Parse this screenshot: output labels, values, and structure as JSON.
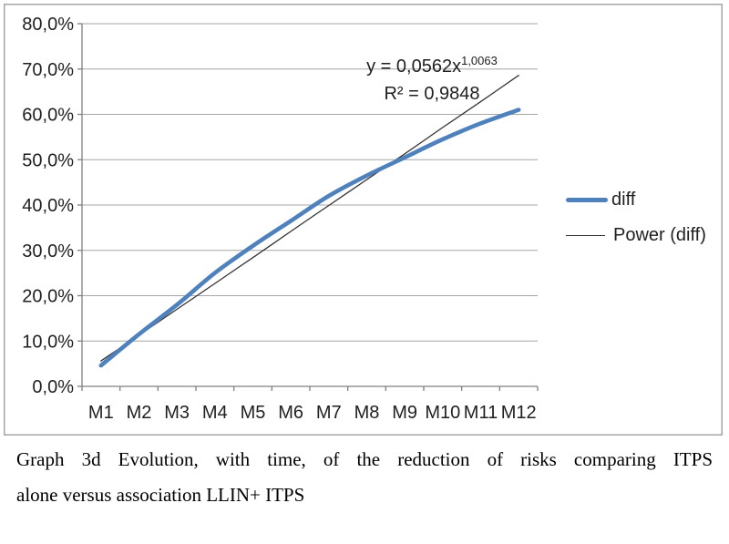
{
  "figure": {
    "caption_line1": "Graph 3d Evolution, with time, of the reduction of risks comparing ITPS",
    "caption_line2": "alone versus association LLIN+ ITPS"
  },
  "chart_data": {
    "type": "line",
    "title": "",
    "xlabel": "",
    "ylabel": "",
    "categories": [
      "M1",
      "M2",
      "M3",
      "M4",
      "M5",
      "M6",
      "M7",
      "M8",
      "M9",
      "M10",
      "M11",
      "M12"
    ],
    "series": [
      {
        "name": "diff",
        "values": [
          4.6,
          11.5,
          18.0,
          25.0,
          31.0,
          36.5,
          42.0,
          46.5,
          50.5,
          54.5,
          58.0,
          61.0
        ],
        "color": "#4f81bd",
        "stroke_width": 4.6,
        "smooth": true
      },
      {
        "name": "Power (diff)",
        "role": "power-trendline",
        "values": [
          5.6,
          11.3,
          17.0,
          22.7,
          28.4,
          34.2,
          39.9,
          45.6,
          51.3,
          57.1,
          62.8,
          68.6
        ],
        "color": "#333333",
        "stroke_width": 1.3,
        "smooth": true
      }
    ],
    "ylim": [
      0,
      80
    ],
    "ytick_step": 10,
    "ytick_labels": [
      "0,0%",
      "10,0%",
      "20,0%",
      "30,0%",
      "40,0%",
      "50,0%",
      "60,0%",
      "70,0%",
      "80,0%"
    ],
    "grid": true,
    "legend_position": "right",
    "legend": [
      "diff",
      "Power (diff)"
    ],
    "annotation": {
      "equation_base": "y = 0,0562x",
      "equation_exponent": "1,0063",
      "r2": "R² = 0,9848"
    },
    "colors": {
      "gridline": "#a6a6a6",
      "axis": "#808080",
      "frame_border": "#a6a6a6",
      "label_text": "#1f1f1f"
    }
  }
}
